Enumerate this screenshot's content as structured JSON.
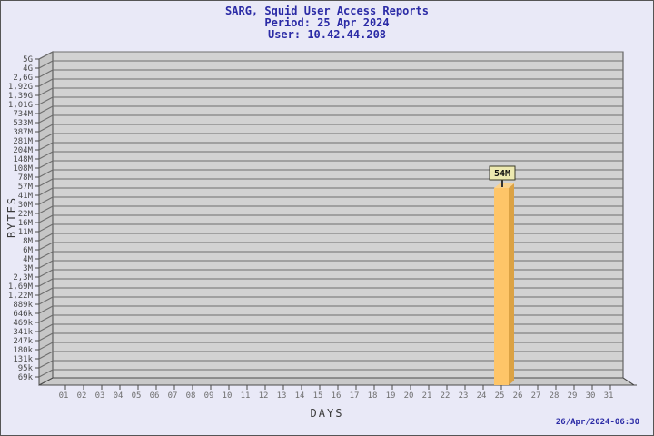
{
  "chart_data": {
    "type": "bar",
    "title": "SARG, Squid User Access Reports",
    "period_line": "Period: 25 Apr 2024",
    "user_line": "User: 10.42.44.208",
    "xlabel": "DAYS",
    "ylabel": "BYTES",
    "footer_timestamp": "26/Apr/2024-06:30",
    "x_tick_labels": [
      "01",
      "02",
      "03",
      "04",
      "05",
      "06",
      "07",
      "08",
      "09",
      "10",
      "11",
      "12",
      "13",
      "14",
      "15",
      "16",
      "17",
      "18",
      "19",
      "20",
      "21",
      "22",
      "23",
      "24",
      "25",
      "26",
      "27",
      "28",
      "29",
      "30",
      "31"
    ],
    "y_tick_labels": [
      "5G",
      "4G",
      "2,6G",
      "1,92G",
      "1,39G",
      "1,01G",
      "734M",
      "533M",
      "387M",
      "281M",
      "204M",
      "148M",
      "108M",
      "78M",
      "57M",
      "41M",
      "30M",
      "22M",
      "16M",
      "11M",
      "8M",
      "6M",
      "4M",
      "3M",
      "2,3M",
      "1,69M",
      "1,22M",
      "889k",
      "646k",
      "469k",
      "341k",
      "247k",
      "180k",
      "131k",
      "95k",
      "69k"
    ],
    "y_axis": {
      "scale": "log",
      "max_bytes": 5000000000,
      "min_bytes": 69000
    },
    "series": [
      {
        "name": "daily_bytes",
        "points": [
          {
            "day": "25",
            "value_bytes": 54000000,
            "label": "54M"
          }
        ]
      }
    ],
    "legend": "none",
    "grid": "horizontal",
    "colors": {
      "background": "#E9E9F7",
      "panel": "#D2D2D2",
      "gridline": "#6E6E6E",
      "wall": "#C6C6C6",
      "floor": "#C9C9C9",
      "frame": "#4A4A4A",
      "bar_front": "#FEC568",
      "bar_side": "#DBA244",
      "bar_top": "#F9D28D",
      "annotation_bg": "#EDE9B0",
      "annotation_border": "#3A3A28",
      "annotation_text": "#111111",
      "title_text": "#2B2BA6",
      "y_tick_text": "#4A4A4A",
      "x_tick_text": "#6E6E6E"
    }
  }
}
